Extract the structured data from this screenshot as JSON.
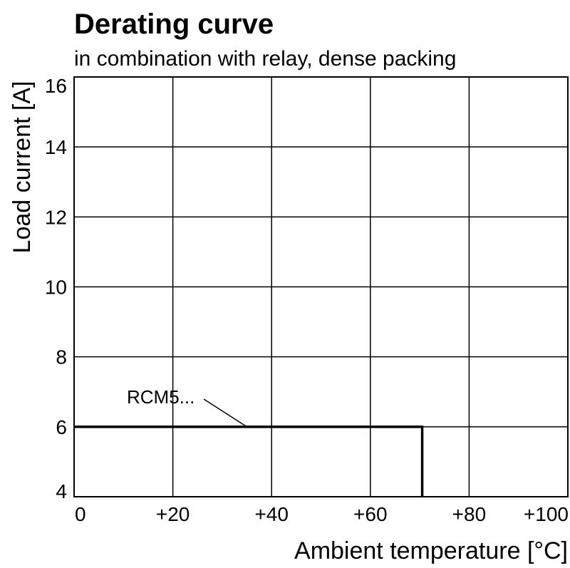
{
  "chart_data": {
    "type": "line",
    "title": "Derating curve",
    "subtitle": "in combination with relay, dense packing",
    "xlabel": "Ambient temperature [°C]",
    "ylabel": "Load current [A]",
    "xlim": [
      0,
      100
    ],
    "ylim": [
      4,
      16
    ],
    "x_ticks": [
      0,
      20,
      40,
      60,
      80,
      100
    ],
    "x_tick_labels": [
      "0",
      "+20",
      "+40",
      "+60",
      "+80",
      "+100"
    ],
    "y_ticks": [
      4,
      6,
      8,
      10,
      12,
      14,
      16
    ],
    "y_tick_labels": [
      "4",
      "6",
      "8",
      "10",
      "12",
      "14",
      "16"
    ],
    "grid": true,
    "series": [
      {
        "name": "RCM5...",
        "x": [
          0,
          70.5,
          70.5
        ],
        "y": [
          6,
          6,
          4
        ]
      }
    ],
    "annotation": {
      "text": "RCM5...",
      "target": [
        35,
        6
      ]
    }
  }
}
